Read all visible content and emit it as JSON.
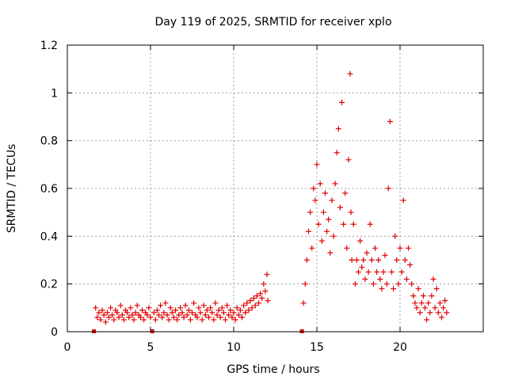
{
  "chart_data": {
    "type": "scatter",
    "title": "Day 119 of 2025, SRMTID for receiver xplo",
    "xlabel": "GPS time / hours",
    "ylabel": "SRMTID / TECUs",
    "xlim": [
      0,
      25
    ],
    "ylim": [
      0,
      1.2
    ],
    "x_ticks": [
      0,
      5,
      10,
      15,
      20
    ],
    "x_tick_labels": [
      "0",
      "5",
      "10",
      "15",
      "20"
    ],
    "y_ticks": [
      0,
      0.2,
      0.4,
      0.6,
      0.8,
      1.0,
      1.2
    ],
    "y_tick_labels": [
      "0",
      "0.2",
      "0.4",
      "0.6",
      "0.8",
      "1",
      "1.2"
    ],
    "grid": true,
    "marker": "+",
    "color": "#e00000",
    "series": [
      {
        "name": "SRMTID",
        "points": [
          [
            1.6,
            0.0
          ],
          [
            5.1,
            0.0
          ],
          [
            14.1,
            0.0
          ],
          [
            1.7,
            0.1
          ],
          [
            1.8,
            0.06
          ],
          [
            1.9,
            0.08
          ],
          [
            2.0,
            0.05
          ],
          [
            2.1,
            0.09
          ],
          [
            2.2,
            0.07
          ],
          [
            2.3,
            0.04
          ],
          [
            2.4,
            0.08
          ],
          [
            2.5,
            0.06
          ],
          [
            2.6,
            0.1
          ],
          [
            2.7,
            0.07
          ],
          [
            2.8,
            0.05
          ],
          [
            2.9,
            0.09
          ],
          [
            3.0,
            0.08
          ],
          [
            3.1,
            0.06
          ],
          [
            3.2,
            0.11
          ],
          [
            3.3,
            0.07
          ],
          [
            3.4,
            0.05
          ],
          [
            3.5,
            0.09
          ],
          [
            3.6,
            0.08
          ],
          [
            3.7,
            0.06
          ],
          [
            3.8,
            0.1
          ],
          [
            3.9,
            0.07
          ],
          [
            4.0,
            0.05
          ],
          [
            4.1,
            0.08
          ],
          [
            4.2,
            0.11
          ],
          [
            4.3,
            0.07
          ],
          [
            4.4,
            0.06
          ],
          [
            4.5,
            0.09
          ],
          [
            4.6,
            0.05
          ],
          [
            4.7,
            0.08
          ],
          [
            4.8,
            0.07
          ],
          [
            4.9,
            0.1
          ],
          [
            5.0,
            0.06
          ],
          [
            5.2,
            0.08
          ],
          [
            5.3,
            0.05
          ],
          [
            5.4,
            0.09
          ],
          [
            5.5,
            0.07
          ],
          [
            5.6,
            0.11
          ],
          [
            5.7,
            0.06
          ],
          [
            5.8,
            0.08
          ],
          [
            5.9,
            0.12
          ],
          [
            6.0,
            0.07
          ],
          [
            6.1,
            0.05
          ],
          [
            6.2,
            0.1
          ],
          [
            6.3,
            0.08
          ],
          [
            6.4,
            0.06
          ],
          [
            6.5,
            0.09
          ],
          [
            6.6,
            0.05
          ],
          [
            6.7,
            0.07
          ],
          [
            6.8,
            0.1
          ],
          [
            6.9,
            0.08
          ],
          [
            7.0,
            0.06
          ],
          [
            7.1,
            0.11
          ],
          [
            7.2,
            0.07
          ],
          [
            7.3,
            0.09
          ],
          [
            7.4,
            0.05
          ],
          [
            7.5,
            0.08
          ],
          [
            7.6,
            0.12
          ],
          [
            7.7,
            0.07
          ],
          [
            7.8,
            0.06
          ],
          [
            7.9,
            0.1
          ],
          [
            8.0,
            0.08
          ],
          [
            8.1,
            0.05
          ],
          [
            8.2,
            0.11
          ],
          [
            8.3,
            0.07
          ],
          [
            8.4,
            0.09
          ],
          [
            8.5,
            0.06
          ],
          [
            8.6,
            0.1
          ],
          [
            8.7,
            0.08
          ],
          [
            8.8,
            0.05
          ],
          [
            8.9,
            0.12
          ],
          [
            9.0,
            0.07
          ],
          [
            9.1,
            0.09
          ],
          [
            9.2,
            0.06
          ],
          [
            9.3,
            0.1
          ],
          [
            9.4,
            0.08
          ],
          [
            9.5,
            0.05
          ],
          [
            9.6,
            0.11
          ],
          [
            9.7,
            0.07
          ],
          [
            9.8,
            0.09
          ],
          [
            9.9,
            0.06
          ],
          [
            10.0,
            0.08
          ],
          [
            10.1,
            0.05
          ],
          [
            10.2,
            0.1
          ],
          [
            10.3,
            0.07
          ],
          [
            10.4,
            0.09
          ],
          [
            10.5,
            0.06
          ],
          [
            10.6,
            0.11
          ],
          [
            10.7,
            0.08
          ],
          [
            10.8,
            0.12
          ],
          [
            10.9,
            0.09
          ],
          [
            11.0,
            0.13
          ],
          [
            11.1,
            0.1
          ],
          [
            11.2,
            0.14
          ],
          [
            11.3,
            0.11
          ],
          [
            11.4,
            0.15
          ],
          [
            11.5,
            0.12
          ],
          [
            11.6,
            0.16
          ],
          [
            11.7,
            0.14
          ],
          [
            11.8,
            0.2
          ],
          [
            11.9,
            0.17
          ],
          [
            12.0,
            0.24
          ],
          [
            12.05,
            0.13
          ],
          [
            14.2,
            0.12
          ],
          [
            14.3,
            0.2
          ],
          [
            14.4,
            0.3
          ],
          [
            14.5,
            0.42
          ],
          [
            14.6,
            0.5
          ],
          [
            14.7,
            0.35
          ],
          [
            14.8,
            0.6
          ],
          [
            14.9,
            0.55
          ],
          [
            15.0,
            0.7
          ],
          [
            15.1,
            0.45
          ],
          [
            15.2,
            0.62
          ],
          [
            15.3,
            0.38
          ],
          [
            15.4,
            0.5
          ],
          [
            15.5,
            0.58
          ],
          [
            15.6,
            0.42
          ],
          [
            15.7,
            0.47
          ],
          [
            15.8,
            0.33
          ],
          [
            15.9,
            0.55
          ],
          [
            16.0,
            0.4
          ],
          [
            16.1,
            0.62
          ],
          [
            16.2,
            0.75
          ],
          [
            16.3,
            0.85
          ],
          [
            16.4,
            0.52
          ],
          [
            16.5,
            0.96
          ],
          [
            16.6,
            0.45
          ],
          [
            16.7,
            0.58
          ],
          [
            16.8,
            0.35
          ],
          [
            16.9,
            0.72
          ],
          [
            17.0,
            1.08
          ],
          [
            17.05,
            0.5
          ],
          [
            17.1,
            0.3
          ],
          [
            17.2,
            0.45
          ],
          [
            17.3,
            0.2
          ],
          [
            17.4,
            0.3
          ],
          [
            17.5,
            0.25
          ],
          [
            17.6,
            0.38
          ],
          [
            17.7,
            0.27
          ],
          [
            17.8,
            0.3
          ],
          [
            17.9,
            0.22
          ],
          [
            18.0,
            0.33
          ],
          [
            18.1,
            0.25
          ],
          [
            18.2,
            0.45
          ],
          [
            18.3,
            0.3
          ],
          [
            18.4,
            0.2
          ],
          [
            18.5,
            0.35
          ],
          [
            18.6,
            0.25
          ],
          [
            18.7,
            0.3
          ],
          [
            18.8,
            0.22
          ],
          [
            18.9,
            0.18
          ],
          [
            19.0,
            0.25
          ],
          [
            19.1,
            0.32
          ],
          [
            19.2,
            0.2
          ],
          [
            19.3,
            0.6
          ],
          [
            19.4,
            0.88
          ],
          [
            19.5,
            0.25
          ],
          [
            19.6,
            0.18
          ],
          [
            19.7,
            0.4
          ],
          [
            19.8,
            0.3
          ],
          [
            19.9,
            0.2
          ],
          [
            20.0,
            0.35
          ],
          [
            20.1,
            0.25
          ],
          [
            20.2,
            0.55
          ],
          [
            20.3,
            0.3
          ],
          [
            20.4,
            0.22
          ],
          [
            20.5,
            0.35
          ],
          [
            20.6,
            0.28
          ],
          [
            20.7,
            0.2
          ],
          [
            20.8,
            0.15
          ],
          [
            20.9,
            0.12
          ],
          [
            21.0,
            0.1
          ],
          [
            21.1,
            0.18
          ],
          [
            21.2,
            0.08
          ],
          [
            21.3,
            0.12
          ],
          [
            21.4,
            0.15
          ],
          [
            21.5,
            0.1
          ],
          [
            21.6,
            0.05
          ],
          [
            21.7,
            0.12
          ],
          [
            21.8,
            0.08
          ],
          [
            21.9,
            0.15
          ],
          [
            22.0,
            0.22
          ],
          [
            22.1,
            0.1
          ],
          [
            22.2,
            0.18
          ],
          [
            22.3,
            0.08
          ],
          [
            22.4,
            0.12
          ],
          [
            22.5,
            0.06
          ],
          [
            22.6,
            0.1
          ],
          [
            22.7,
            0.13
          ],
          [
            22.8,
            0.08
          ]
        ]
      }
    ]
  }
}
